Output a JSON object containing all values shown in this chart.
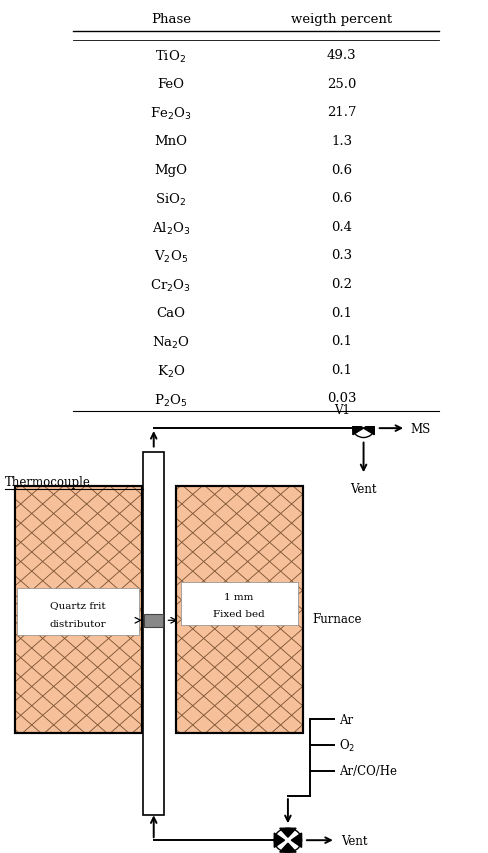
{
  "table_phases": [
    "TiO$_2$",
    "FeO",
    "Fe$_2$O$_3$",
    "MnO",
    "MgO",
    "SiO$_2$",
    "Al$_2$O$_3$",
    "V$_2$O$_5$",
    "Cr$_2$O$_3$",
    "CaO",
    "Na$_2$O",
    "K$_2$O",
    "P$_2$O$_5$"
  ],
  "table_values": [
    "49.3",
    "25.0",
    "21.7",
    "1.3",
    "0.6",
    "0.6",
    "0.4",
    "0.3",
    "0.2",
    "0.1",
    "0.1",
    "0.1",
    "0.03"
  ],
  "col_headers": [
    "Phase",
    "weigth percent"
  ],
  "furnace_color": "#F5C09A",
  "hatch_color": "#7A5030",
  "background_color": "#ffffff"
}
